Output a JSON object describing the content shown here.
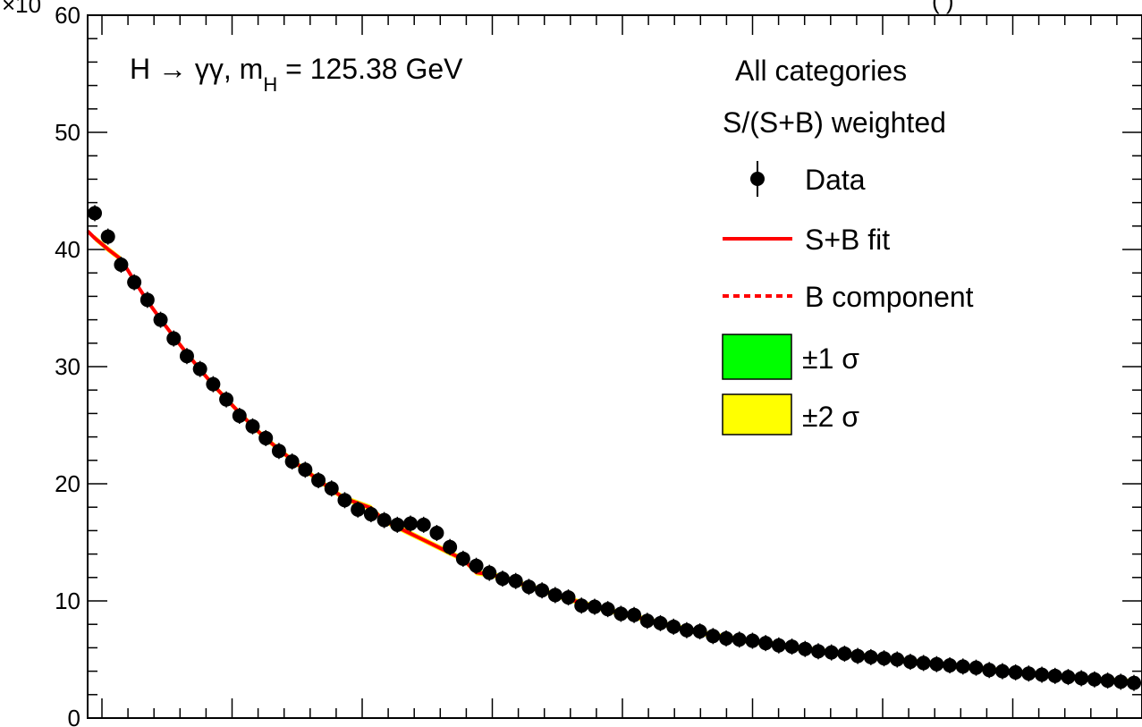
{
  "chart_data": {
    "type": "scatter",
    "y_multiplier_label": "×10",
    "top_right_partial_label": "(  )",
    "annotation": {
      "process": "H → γγ, m",
      "sub": "H",
      "mass": " = 125.38 GeV"
    },
    "category_lines": [
      "All categories",
      "S/(S+B) weighted"
    ],
    "legend": [
      {
        "label": "Data",
        "kind": "marker"
      },
      {
        "label": "S+B fit",
        "kind": "solid-line",
        "color": "#ff0000"
      },
      {
        "label": "B component",
        "kind": "dashed-line",
        "color": "#ff0000"
      },
      {
        "label": "±1 σ",
        "kind": "box",
        "color": "#00ff00"
      },
      {
        "label": "±2 σ",
        "kind": "box",
        "color": "#ffff00"
      }
    ],
    "ylim": [
      0,
      60
    ],
    "yticks": [
      0,
      10,
      20,
      30,
      40,
      50,
      60
    ],
    "y_tick_labels": [
      "0",
      "10",
      "20",
      "30",
      "40",
      "50",
      "60"
    ],
    "bins": 80,
    "values": [
      43.1,
      41.1,
      38.7,
      37.2,
      35.7,
      34.0,
      32.4,
      30.9,
      29.8,
      28.5,
      27.2,
      25.8,
      24.9,
      23.9,
      22.8,
      21.9,
      21.2,
      20.3,
      19.6,
      18.6,
      17.8,
      17.4,
      16.9,
      16.5,
      16.6,
      16.5,
      15.8,
      14.6,
      13.6,
      13.0,
      12.4,
      11.9,
      11.7,
      11.2,
      10.9,
      10.5,
      10.3,
      9.6,
      9.5,
      9.3,
      8.9,
      8.8,
      8.3,
      8.1,
      7.8,
      7.5,
      7.4,
      7.0,
      6.8,
      6.7,
      6.6,
      6.4,
      6.2,
      6.1,
      5.9,
      5.7,
      5.6,
      5.5,
      5.3,
      5.2,
      5.1,
      5.0,
      4.8,
      4.7,
      4.6,
      4.5,
      4.4,
      4.3,
      4.1,
      4.0,
      3.9,
      3.8,
      3.7,
      3.6,
      3.5,
      3.4,
      3.3,
      3.2,
      3.1,
      3.0
    ],
    "colors": {
      "fit": "#ff0000",
      "data": "#000000",
      "band1": "#00ff00",
      "band2": "#ffff00"
    }
  }
}
